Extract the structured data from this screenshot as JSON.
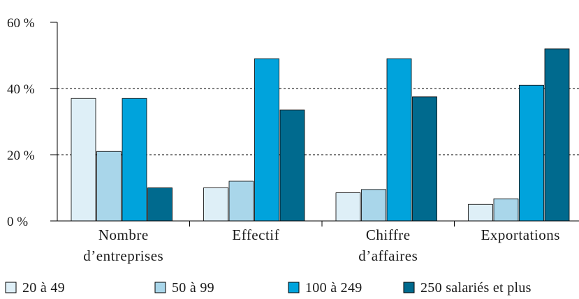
{
  "chart_data": {
    "type": "bar",
    "categories": [
      [
        "Nombre",
        "d’entreprises"
      ],
      [
        "Effectif"
      ],
      [
        "Chiffre",
        "d’affaires"
      ],
      [
        "Exportations"
      ]
    ],
    "series": [
      {
        "name": "20 à 49",
        "color": "#deeff7",
        "values": [
          37,
          10,
          8.5,
          5
        ]
      },
      {
        "name": "50 à 99",
        "color": "#a9d6ea",
        "values": [
          21,
          12,
          9.5,
          6.7
        ]
      },
      {
        "name": "100 à 249",
        "color": "#00a3dc",
        "values": [
          37,
          49,
          49,
          41
        ]
      },
      {
        "name": "250 salariés et plus",
        "color": "#006a8e",
        "values": [
          10,
          33.5,
          37.5,
          52
        ]
      }
    ],
    "y_ticks": [
      {
        "value": 0,
        "label": "0 %"
      },
      {
        "value": 20,
        "label": "20 %"
      },
      {
        "value": 40,
        "label": "40 %"
      },
      {
        "value": 60,
        "label": "60 %"
      }
    ],
    "ylim": [
      0,
      60
    ],
    "grid": "dashed horizontal at 20 and 40",
    "legend_position": "bottom",
    "title": "",
    "xlabel": "",
    "ylabel": ""
  }
}
